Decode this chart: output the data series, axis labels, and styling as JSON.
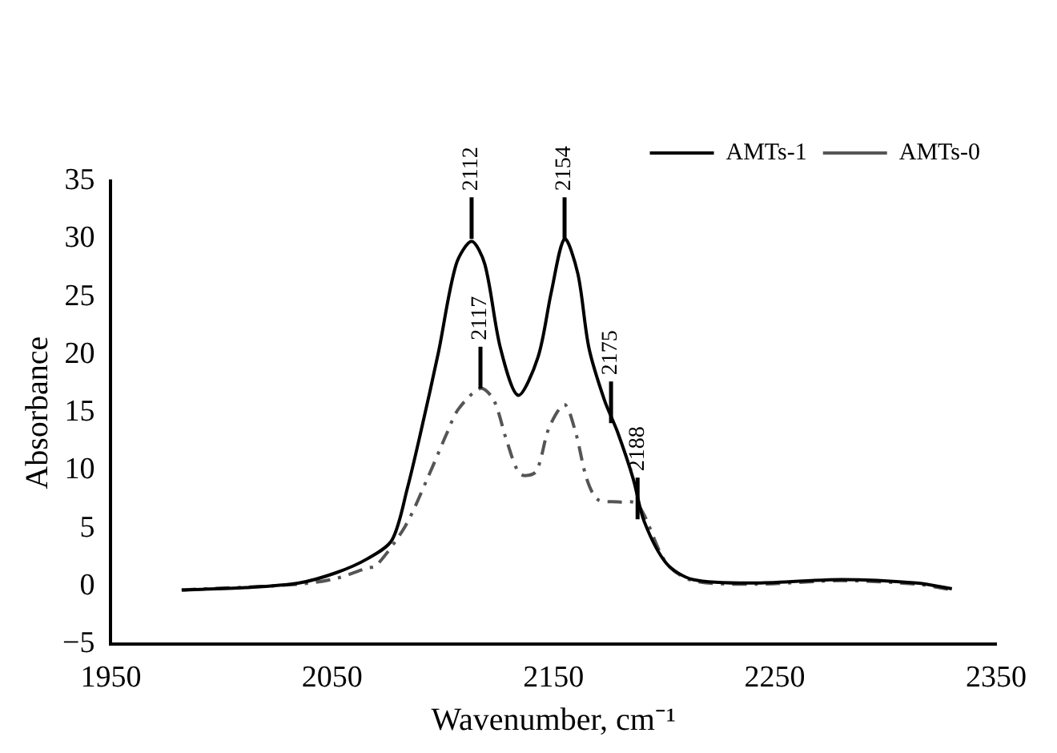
{
  "chart_data": {
    "type": "line",
    "xlabel": "Wavenumber, cm⁻¹",
    "ylabel": "Absorbance",
    "xlim": [
      1950,
      2350
    ],
    "xticks": [
      1950,
      2050,
      2150,
      2250,
      2350
    ],
    "ylim": [
      -5,
      35
    ],
    "yticks": [
      {
        "value": -5,
        "label": "−5"
      },
      0,
      5,
      10,
      15,
      20,
      25,
      30,
      35
    ],
    "legend": "top right",
    "series": [
      {
        "name": "AMTs-1",
        "color": "#000000",
        "line_style": "solid",
        "x": [
          1982,
          2011,
          2035,
          2052,
          2066,
          2077,
          2084,
          2090,
          2098,
          2106,
          2113,
          2119,
          2126,
          2134,
          2143,
          2149,
          2155,
          2161,
          2166,
          2173,
          2179,
          2186,
          2191,
          2201,
          2213,
          2242,
          2280,
          2314,
          2330
        ],
        "values": [
          -0.3,
          -0.1,
          0.3,
          1.2,
          2.4,
          4.0,
          8.5,
          13.3,
          20.2,
          27.8,
          29.8,
          27.8,
          20.6,
          16.5,
          19.8,
          25.4,
          30.0,
          27.0,
          20.6,
          16.1,
          13.3,
          9.3,
          5.6,
          2.0,
          0.6,
          0.3,
          0.6,
          0.3,
          -0.2
        ]
      },
      {
        "name": "AMTs-0",
        "color": "#555555",
        "line_style": "dashed",
        "x": [
          1982,
          2035,
          2052,
          2066,
          2070,
          2083,
          2093,
          2102,
          2107,
          2117,
          2123,
          2129,
          2135,
          2142,
          2148,
          2155,
          2160,
          2165,
          2170,
          2179,
          2188,
          2201,
          2213,
          2242,
          2280,
          2314,
          2330
        ],
        "values": [
          -0.3,
          0.2,
          0.7,
          1.6,
          1.8,
          5.2,
          9.3,
          13.3,
          15.3,
          17.1,
          16.1,
          12.5,
          9.7,
          9.9,
          13.7,
          15.7,
          13.3,
          9.3,
          7.5,
          7.3,
          7.1,
          2.0,
          0.5,
          0.2,
          0.5,
          0.2,
          -0.3
        ]
      }
    ],
    "annotations": [
      {
        "text": "2112",
        "x": 2113,
        "y": 30
      },
      {
        "text": "2117",
        "x": 2117,
        "y": 17.1
      },
      {
        "text": "2154",
        "x": 2155,
        "y": 30
      },
      {
        "text": "2175",
        "x": 2176,
        "y": 14.1
      },
      {
        "text": "2188",
        "x": 2188,
        "y": 5.8
      }
    ]
  }
}
